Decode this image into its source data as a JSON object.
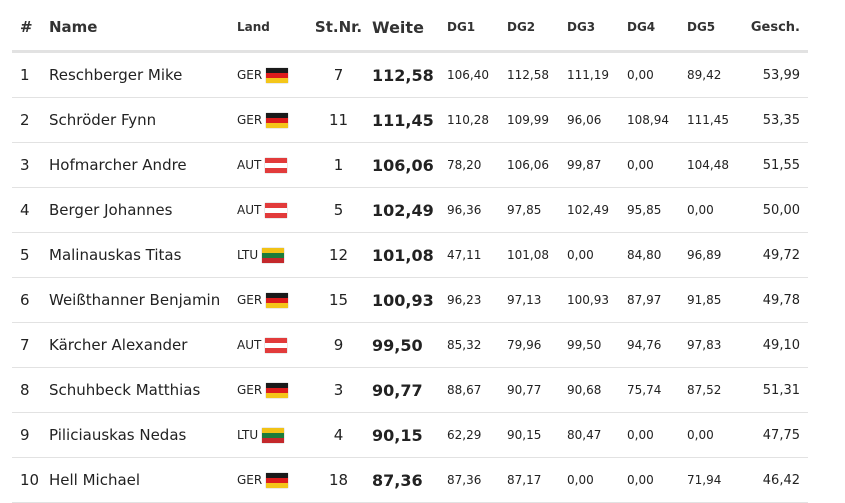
{
  "headers": {
    "rank": "#",
    "name": "Name",
    "land": "Land",
    "st_nr": "St.Nr.",
    "weite": "Weite",
    "dg1": "DG1",
    "dg2": "DG2",
    "dg3": "DG3",
    "dg4": "DG4",
    "dg5": "DG5",
    "gesch": "Gesch."
  },
  "flag_icons": {
    "GER": "germany-flag-icon",
    "AUT": "austria-flag-icon",
    "LTU": "lithuania-flag-icon"
  },
  "rows": [
    {
      "rank": "1",
      "name": "Reschberger Mike",
      "land": "GER",
      "st_nr": "7",
      "weite": "112,58",
      "dg1": "106,40",
      "dg2": "112,58",
      "dg3": "111,19",
      "dg4": "0,00",
      "dg5": "89,42",
      "gesch": "53,99"
    },
    {
      "rank": "2",
      "name": "Schröder Fynn",
      "land": "GER",
      "st_nr": "11",
      "weite": "111,45",
      "dg1": "110,28",
      "dg2": "109,99",
      "dg3": "96,06",
      "dg4": "108,94",
      "dg5": "111,45",
      "gesch": "53,35"
    },
    {
      "rank": "3",
      "name": "Hofmarcher Andre",
      "land": "AUT",
      "st_nr": "1",
      "weite": "106,06",
      "dg1": "78,20",
      "dg2": "106,06",
      "dg3": "99,87",
      "dg4": "0,00",
      "dg5": "104,48",
      "gesch": "51,55"
    },
    {
      "rank": "4",
      "name": "Berger Johannes",
      "land": "AUT",
      "st_nr": "5",
      "weite": "102,49",
      "dg1": "96,36",
      "dg2": "97,85",
      "dg3": "102,49",
      "dg4": "95,85",
      "dg5": "0,00",
      "gesch": "50,00"
    },
    {
      "rank": "5",
      "name": "Malinauskas Titas",
      "land": "LTU",
      "st_nr": "12",
      "weite": "101,08",
      "dg1": "47,11",
      "dg2": "101,08",
      "dg3": "0,00",
      "dg4": "84,80",
      "dg5": "96,89",
      "gesch": "49,72"
    },
    {
      "rank": "6",
      "name": "Weißthanner Benjamin",
      "land": "GER",
      "st_nr": "15",
      "weite": "100,93",
      "dg1": "96,23",
      "dg2": "97,13",
      "dg3": "100,93",
      "dg4": "87,97",
      "dg5": "91,85",
      "gesch": "49,78"
    },
    {
      "rank": "7",
      "name": "Kärcher Alexander",
      "land": "AUT",
      "st_nr": "9",
      "weite": "99,50",
      "dg1": "85,32",
      "dg2": "79,96",
      "dg3": "99,50",
      "dg4": "94,76",
      "dg5": "97,83",
      "gesch": "49,10"
    },
    {
      "rank": "8",
      "name": "Schuhbeck Matthias",
      "land": "GER",
      "st_nr": "3",
      "weite": "90,77",
      "dg1": "88,67",
      "dg2": "90,77",
      "dg3": "90,68",
      "dg4": "75,74",
      "dg5": "87,52",
      "gesch": "51,31"
    },
    {
      "rank": "9",
      "name": "Piliciauskas Nedas",
      "land": "LTU",
      "st_nr": "4",
      "weite": "90,15",
      "dg1": "62,29",
      "dg2": "90,15",
      "dg3": "80,47",
      "dg4": "0,00",
      "dg5": "0,00",
      "gesch": "47,75"
    },
    {
      "rank": "10",
      "name": "Hell Michael",
      "land": "GER",
      "st_nr": "18",
      "weite": "87,36",
      "dg1": "87,36",
      "dg2": "87,17",
      "dg3": "0,00",
      "dg4": "0,00",
      "dg5": "71,94",
      "gesch": "46,42"
    }
  ]
}
